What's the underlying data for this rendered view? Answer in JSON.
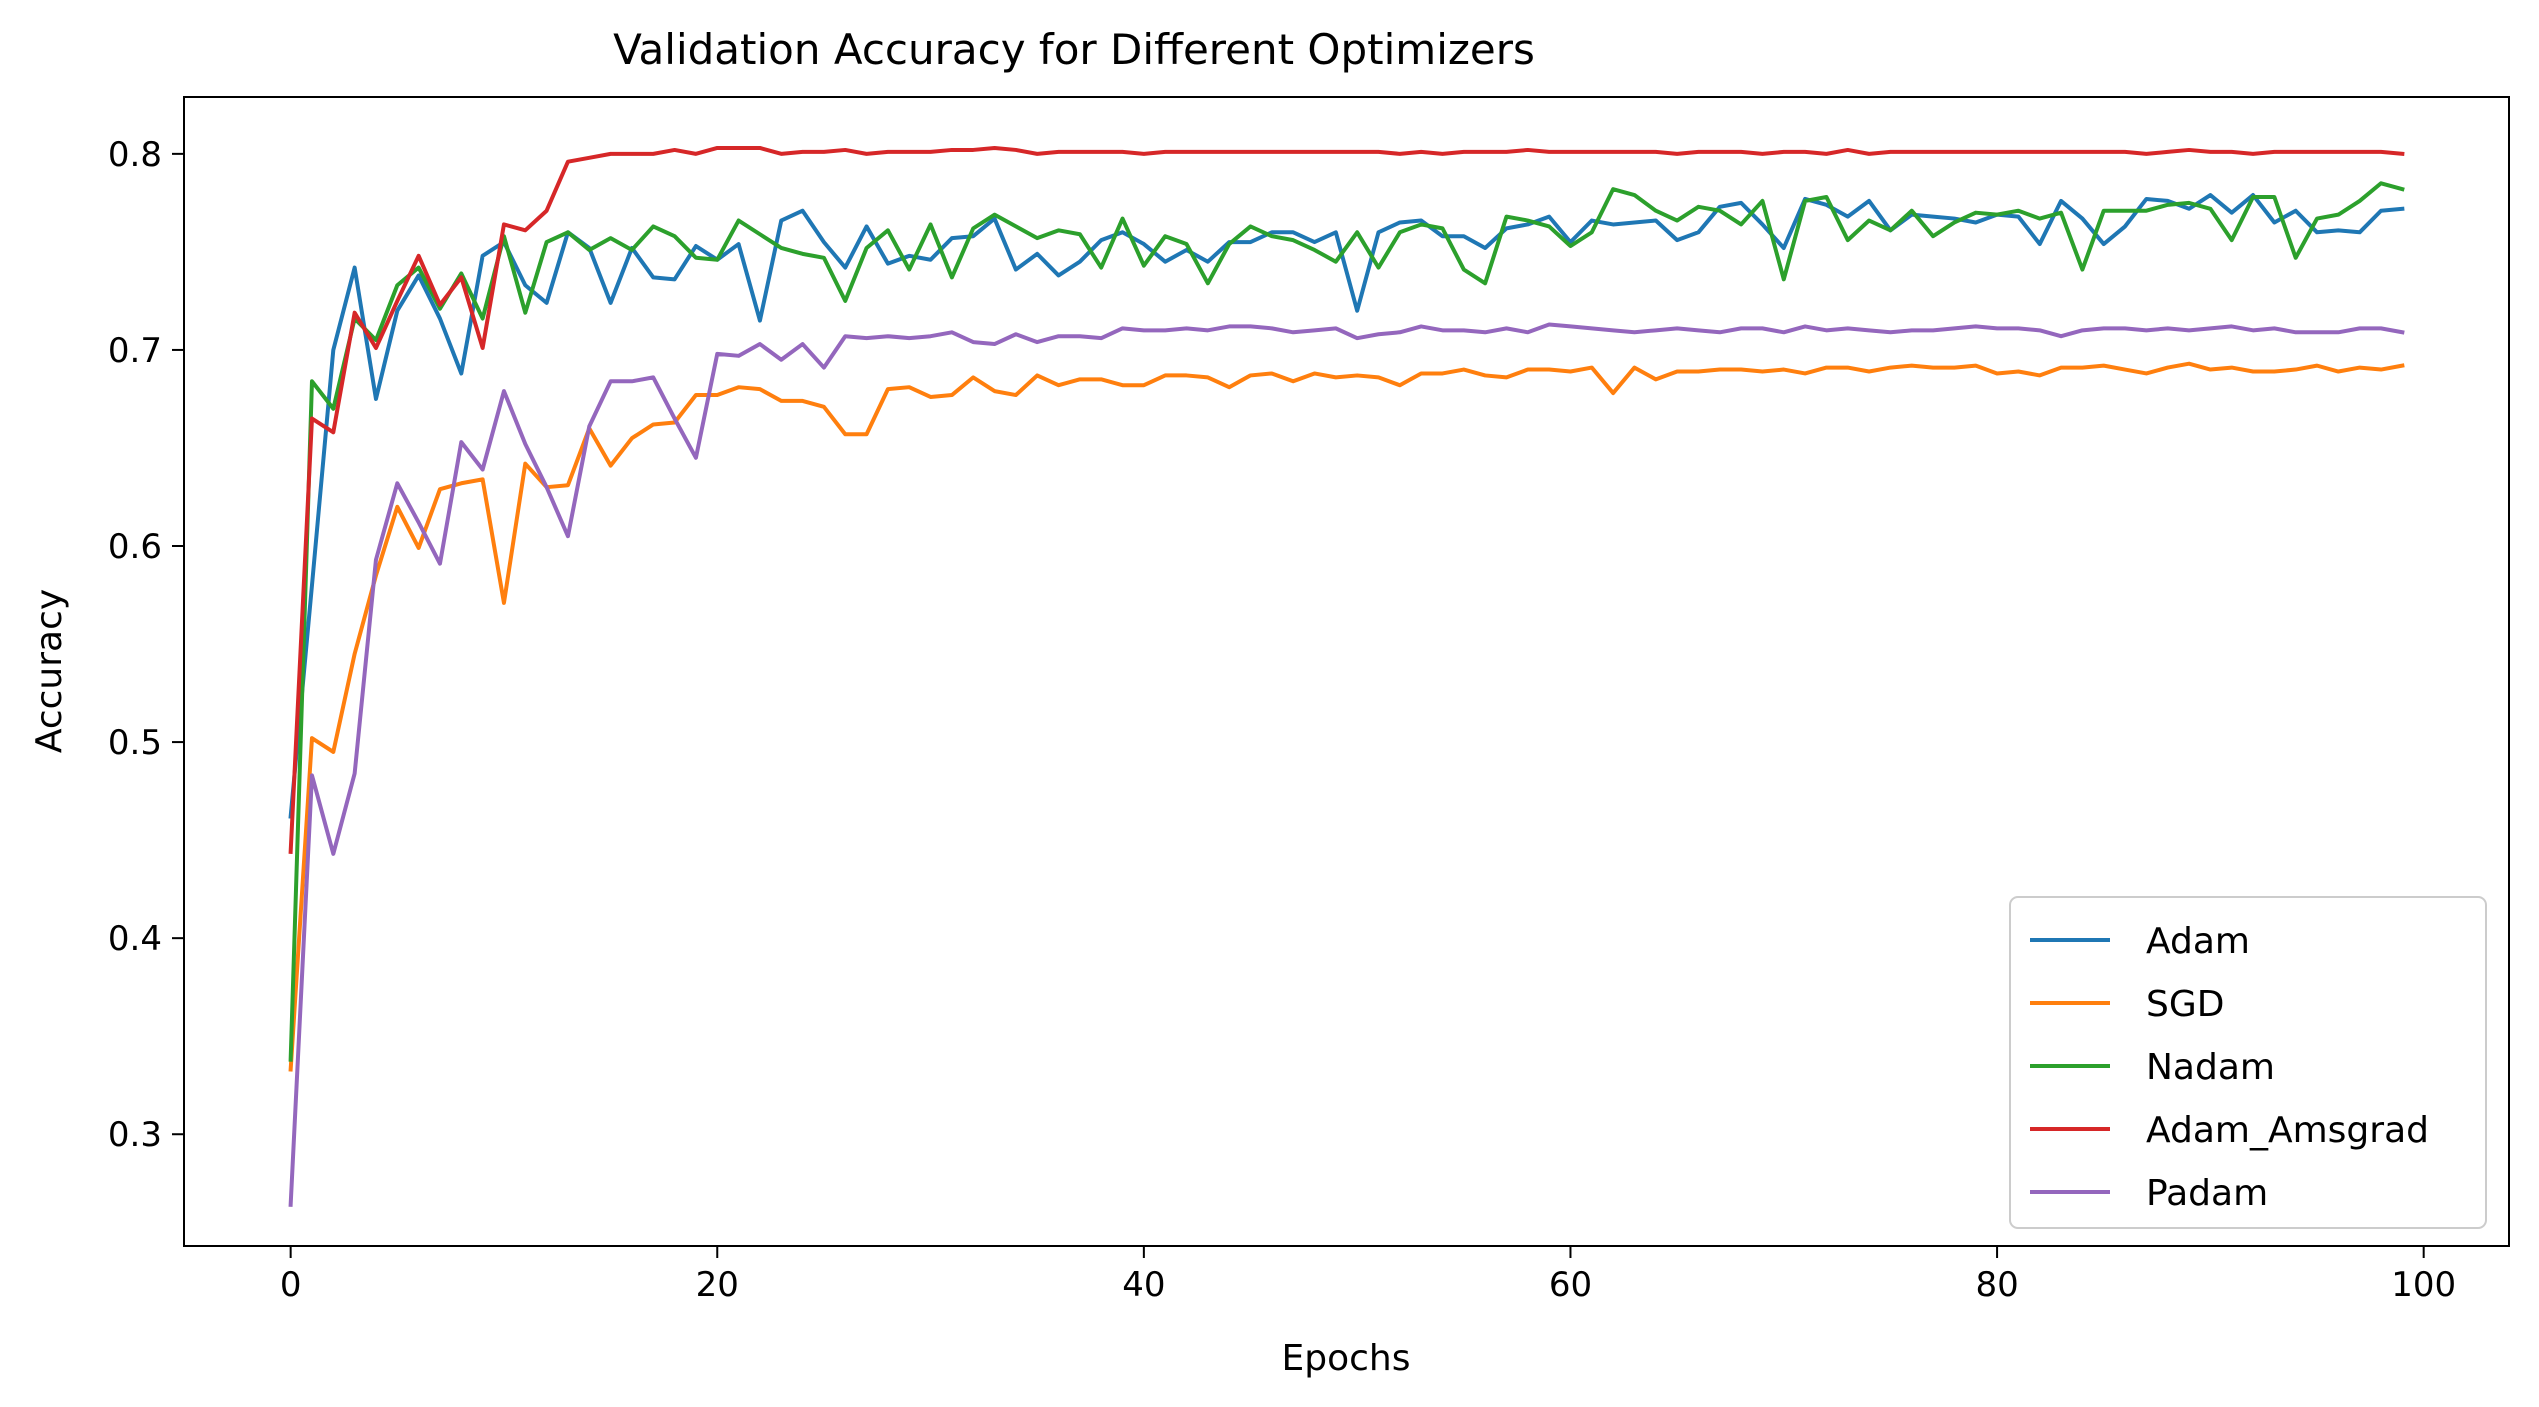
{
  "chart_data": {
    "type": "line",
    "title": "Validation Accuracy for Different Optimizers",
    "xlabel": "Epochs",
    "ylabel": "Accuracy",
    "xlim": [
      -5,
      104
    ],
    "ylim": [
      0.243,
      0.829
    ],
    "xticks": [
      0,
      20,
      40,
      60,
      80,
      100
    ],
    "yticks": [
      0.3,
      0.4,
      0.5,
      0.6,
      0.7,
      0.8
    ],
    "ytick_labels": [
      "0.3",
      "0.4",
      "0.5",
      "0.6",
      "0.7",
      "0.8"
    ],
    "grid": false,
    "legend_position": "lower right",
    "series": [
      {
        "name": "Adam",
        "color": "#1f77b4",
        "values": [
          0.462,
          0.58,
          0.7,
          0.742,
          0.675,
          0.72,
          0.738,
          0.716,
          0.688,
          0.748,
          0.755,
          0.733,
          0.724,
          0.76,
          0.752,
          0.724,
          0.752,
          0.737,
          0.736,
          0.753,
          0.746,
          0.754,
          0.715,
          0.766,
          0.771,
          0.755,
          0.742,
          0.763,
          0.744,
          0.748,
          0.746,
          0.757,
          0.758,
          0.767,
          0.741,
          0.749,
          0.738,
          0.745,
          0.756,
          0.76,
          0.754,
          0.745,
          0.751,
          0.745,
          0.755,
          0.755,
          0.76,
          0.76,
          0.755,
          0.76,
          0.72,
          0.76,
          0.765,
          0.766,
          0.758,
          0.758,
          0.752,
          0.762,
          0.764,
          0.768,
          0.755,
          0.766,
          0.764,
          0.765,
          0.766,
          0.756,
          0.76,
          0.773,
          0.775,
          0.764,
          0.752,
          0.777,
          0.774,
          0.768,
          0.776,
          0.761,
          0.769,
          0.768,
          0.767,
          0.765,
          0.769,
          0.768,
          0.754,
          0.776,
          0.767,
          0.754,
          0.763,
          0.777,
          0.776,
          0.772,
          0.779,
          0.77,
          0.779,
          0.765,
          0.771,
          0.76,
          0.761,
          0.76,
          0.771,
          0.772
        ]
      },
      {
        "name": "SGD",
        "color": "#ff7f0e",
        "values": [
          0.333,
          0.502,
          0.495,
          0.545,
          0.585,
          0.62,
          0.599,
          0.629,
          0.632,
          0.634,
          0.571,
          0.642,
          0.63,
          0.631,
          0.66,
          0.641,
          0.655,
          0.662,
          0.663,
          0.677,
          0.677,
          0.681,
          0.68,
          0.674,
          0.674,
          0.671,
          0.657,
          0.657,
          0.68,
          0.681,
          0.676,
          0.677,
          0.686,
          0.679,
          0.677,
          0.687,
          0.682,
          0.685,
          0.685,
          0.682,
          0.682,
          0.687,
          0.687,
          0.686,
          0.681,
          0.687,
          0.688,
          0.684,
          0.688,
          0.686,
          0.687,
          0.686,
          0.682,
          0.688,
          0.688,
          0.69,
          0.687,
          0.686,
          0.69,
          0.69,
          0.689,
          0.691,
          0.678,
          0.691,
          0.685,
          0.689,
          0.689,
          0.69,
          0.69,
          0.689,
          0.69,
          0.688,
          0.691,
          0.691,
          0.689,
          0.691,
          0.692,
          0.691,
          0.691,
          0.692,
          0.688,
          0.689,
          0.687,
          0.691,
          0.691,
          0.692,
          0.69,
          0.688,
          0.691,
          0.693,
          0.69,
          0.691,
          0.689,
          0.689,
          0.69,
          0.692,
          0.689,
          0.691,
          0.69,
          0.692
        ]
      },
      {
        "name": "Nadam",
        "color": "#2ca02c",
        "values": [
          0.338,
          0.684,
          0.67,
          0.716,
          0.705,
          0.733,
          0.742,
          0.721,
          0.739,
          0.716,
          0.758,
          0.719,
          0.755,
          0.76,
          0.751,
          0.757,
          0.751,
          0.763,
          0.758,
          0.747,
          0.746,
          0.766,
          0.759,
          0.752,
          0.749,
          0.747,
          0.725,
          0.752,
          0.761,
          0.741,
          0.764,
          0.737,
          0.762,
          0.769,
          0.763,
          0.757,
          0.761,
          0.759,
          0.742,
          0.767,
          0.743,
          0.758,
          0.754,
          0.734,
          0.754,
          0.763,
          0.758,
          0.756,
          0.751,
          0.745,
          0.76,
          0.742,
          0.76,
          0.764,
          0.762,
          0.741,
          0.734,
          0.768,
          0.766,
          0.763,
          0.753,
          0.76,
          0.782,
          0.779,
          0.771,
          0.766,
          0.773,
          0.771,
          0.764,
          0.776,
          0.736,
          0.776,
          0.778,
          0.756,
          0.766,
          0.761,
          0.771,
          0.758,
          0.765,
          0.77,
          0.769,
          0.771,
          0.767,
          0.77,
          0.741,
          0.771,
          0.771,
          0.771,
          0.774,
          0.775,
          0.772,
          0.756,
          0.778,
          0.778,
          0.747,
          0.767,
          0.769,
          0.776,
          0.785,
          0.782
        ]
      },
      {
        "name": "Adam_Amsgrad",
        "color": "#d62728",
        "values": [
          0.444,
          0.665,
          0.658,
          0.719,
          0.701,
          0.725,
          0.748,
          0.723,
          0.737,
          0.701,
          0.764,
          0.761,
          0.771,
          0.796,
          0.798,
          0.8,
          0.8,
          0.8,
          0.802,
          0.8,
          0.803,
          0.803,
          0.803,
          0.8,
          0.801,
          0.801,
          0.802,
          0.8,
          0.801,
          0.801,
          0.801,
          0.802,
          0.802,
          0.803,
          0.802,
          0.8,
          0.801,
          0.801,
          0.801,
          0.801,
          0.8,
          0.801,
          0.801,
          0.801,
          0.801,
          0.801,
          0.801,
          0.801,
          0.801,
          0.801,
          0.801,
          0.801,
          0.8,
          0.801,
          0.8,
          0.801,
          0.801,
          0.801,
          0.802,
          0.801,
          0.801,
          0.801,
          0.801,
          0.801,
          0.801,
          0.8,
          0.801,
          0.801,
          0.801,
          0.8,
          0.801,
          0.801,
          0.8,
          0.802,
          0.8,
          0.801,
          0.801,
          0.801,
          0.801,
          0.801,
          0.801,
          0.801,
          0.801,
          0.801,
          0.801,
          0.801,
          0.801,
          0.8,
          0.801,
          0.802,
          0.801,
          0.801,
          0.8,
          0.801,
          0.801,
          0.801,
          0.801,
          0.801,
          0.801,
          0.8
        ]
      },
      {
        "name": "Padam",
        "color": "#9467bd",
        "values": [
          0.264,
          0.483,
          0.443,
          0.484,
          0.593,
          0.632,
          0.612,
          0.591,
          0.653,
          0.639,
          0.679,
          0.652,
          0.63,
          0.605,
          0.661,
          0.684,
          0.684,
          0.686,
          0.665,
          0.645,
          0.698,
          0.697,
          0.703,
          0.695,
          0.703,
          0.691,
          0.707,
          0.706,
          0.707,
          0.706,
          0.707,
          0.709,
          0.704,
          0.703,
          0.708,
          0.704,
          0.707,
          0.707,
          0.706,
          0.711,
          0.71,
          0.71,
          0.711,
          0.71,
          0.712,
          0.712,
          0.711,
          0.709,
          0.71,
          0.711,
          0.706,
          0.708,
          0.709,
          0.712,
          0.71,
          0.71,
          0.709,
          0.711,
          0.709,
          0.713,
          0.712,
          0.711,
          0.71,
          0.709,
          0.71,
          0.711,
          0.71,
          0.709,
          0.711,
          0.711,
          0.709,
          0.712,
          0.71,
          0.711,
          0.71,
          0.709,
          0.71,
          0.71,
          0.711,
          0.712,
          0.711,
          0.711,
          0.71,
          0.707,
          0.71,
          0.711,
          0.711,
          0.71,
          0.711,
          0.71,
          0.711,
          0.712,
          0.71,
          0.711,
          0.709,
          0.709,
          0.709,
          0.711,
          0.711,
          0.709
        ]
      }
    ]
  }
}
